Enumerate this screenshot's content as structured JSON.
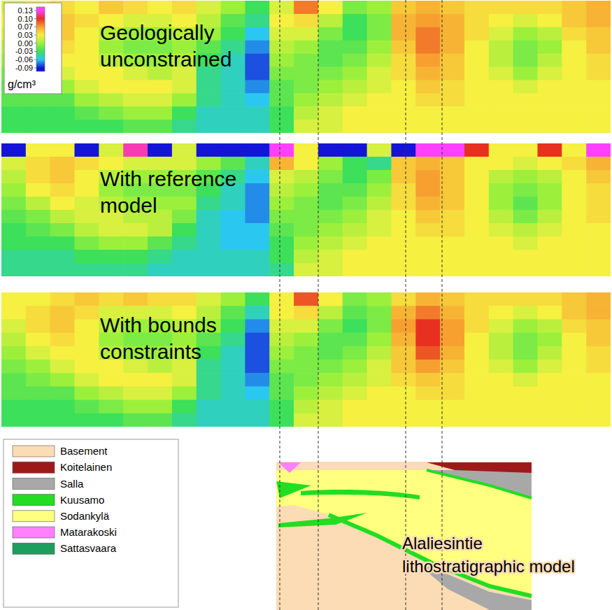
{
  "chart_data": [
    {
      "type": "heatmap",
      "title": "Geologically unconstrained",
      "tick_labels": false,
      "cells": [
        [
          0.02,
          0.03,
          0.04,
          0.03,
          0.05,
          0.04,
          0.03,
          0.04,
          0.02,
          0.0,
          -0.03,
          0.02,
          0.08,
          0.03,
          -0.01,
          0.0,
          0.05,
          0.06,
          0.05,
          0.04,
          0.04,
          0.04,
          0.04,
          0.05,
          0.06
        ],
        [
          0.03,
          0.04,
          0.05,
          0.04,
          0.03,
          0.02,
          0.02,
          0.03,
          0.01,
          -0.02,
          -0.04,
          0.03,
          0.04,
          0.01,
          -0.03,
          -0.01,
          0.06,
          0.07,
          0.06,
          0.04,
          0.03,
          0.02,
          0.03,
          0.05,
          0.06
        ],
        [
          0.02,
          0.04,
          0.05,
          0.03,
          0.01,
          0.0,
          0.0,
          0.01,
          0.0,
          -0.03,
          -0.06,
          0.02,
          0.02,
          -0.01,
          -0.03,
          -0.01,
          0.06,
          0.08,
          0.06,
          0.04,
          0.02,
          0.0,
          0.01,
          0.04,
          0.05
        ],
        [
          0.01,
          0.03,
          0.04,
          0.03,
          0.0,
          -0.01,
          -0.01,
          0.0,
          -0.02,
          -0.04,
          -0.07,
          0.01,
          0.0,
          -0.02,
          -0.02,
          0.0,
          0.05,
          0.08,
          0.06,
          0.03,
          0.01,
          -0.01,
          0.0,
          0.03,
          0.05
        ],
        [
          0.0,
          0.02,
          0.03,
          0.03,
          0.01,
          0.0,
          0.0,
          0.01,
          -0.03,
          -0.05,
          -0.08,
          0.0,
          -0.01,
          -0.02,
          -0.01,
          0.01,
          0.04,
          0.07,
          0.05,
          0.03,
          0.01,
          -0.01,
          0.01,
          0.03,
          0.04
        ],
        [
          -0.01,
          0.0,
          0.02,
          0.03,
          0.03,
          0.02,
          0.01,
          0.02,
          -0.04,
          -0.05,
          -0.08,
          -0.01,
          -0.01,
          -0.01,
          0.0,
          0.02,
          0.04,
          0.06,
          0.05,
          0.03,
          0.02,
          0.0,
          0.02,
          0.03,
          0.04
        ],
        [
          -0.02,
          -0.01,
          0.0,
          0.02,
          0.03,
          0.03,
          0.03,
          0.02,
          -0.04,
          -0.05,
          -0.07,
          -0.02,
          -0.01,
          0.0,
          0.01,
          0.02,
          0.03,
          0.05,
          0.04,
          0.03,
          0.03,
          0.02,
          0.03,
          0.03,
          0.03
        ],
        [
          -0.02,
          -0.02,
          -0.02,
          0.0,
          0.01,
          0.02,
          0.02,
          0.0,
          -0.04,
          -0.05,
          -0.06,
          -0.02,
          0.0,
          0.01,
          0.02,
          0.03,
          0.03,
          0.04,
          0.04,
          0.03,
          0.03,
          0.03,
          0.03,
          0.03,
          0.03
        ],
        [
          -0.03,
          -0.03,
          -0.03,
          -0.02,
          -0.01,
          0.0,
          0.0,
          -0.03,
          -0.05,
          -0.05,
          -0.05,
          -0.03,
          0.01,
          0.02,
          0.03,
          0.03,
          0.03,
          0.03,
          0.03,
          0.03,
          0.03,
          0.03,
          0.03,
          0.03,
          0.03
        ],
        [
          -0.03,
          -0.03,
          -0.03,
          -0.03,
          -0.03,
          -0.02,
          -0.02,
          -0.04,
          -0.05,
          -0.05,
          -0.05,
          -0.03,
          0.02,
          0.02,
          0.03,
          0.03,
          0.03,
          0.03,
          0.03,
          0.03,
          0.03,
          0.03,
          0.03,
          0.03,
          0.03
        ]
      ]
    },
    {
      "type": "heatmap",
      "title": "With reference model",
      "tick_labels": false,
      "cells": [
        [
          -0.09,
          0.03,
          0.03,
          -0.09,
          0.02,
          0.12,
          -0.09,
          0.02,
          -0.09,
          -0.09,
          -0.09,
          0.13,
          0.03,
          -0.09,
          -0.09,
          0.02,
          -0.09,
          0.13,
          0.13,
          0.1,
          0.03,
          0.03,
          0.1,
          0.03,
          0.13
        ],
        [
          0.02,
          0.04,
          0.05,
          0.04,
          0.03,
          0.02,
          0.02,
          0.02,
          0.0,
          -0.02,
          -0.05,
          0.06,
          0.03,
          0.0,
          -0.03,
          -0.04,
          0.05,
          0.06,
          0.05,
          0.03,
          0.03,
          0.02,
          0.03,
          0.04,
          0.06
        ],
        [
          0.01,
          0.04,
          0.05,
          0.03,
          0.01,
          0.0,
          0.0,
          0.0,
          -0.02,
          -0.04,
          -0.06,
          0.02,
          0.01,
          -0.01,
          -0.03,
          -0.01,
          0.05,
          0.07,
          0.05,
          0.03,
          0.01,
          0.0,
          0.01,
          0.03,
          0.05
        ],
        [
          0.0,
          0.03,
          0.04,
          0.03,
          0.0,
          -0.01,
          -0.01,
          -0.01,
          -0.03,
          -0.05,
          -0.07,
          0.01,
          0.0,
          -0.02,
          -0.02,
          0.0,
          0.04,
          0.07,
          0.05,
          0.03,
          0.0,
          -0.01,
          0.0,
          0.03,
          0.04
        ],
        [
          -0.01,
          0.01,
          0.03,
          0.02,
          0.01,
          0.0,
          0.0,
          0.0,
          -0.04,
          -0.05,
          -0.07,
          0.0,
          -0.01,
          -0.02,
          -0.01,
          0.01,
          0.04,
          0.06,
          0.05,
          0.03,
          0.0,
          -0.02,
          0.0,
          0.03,
          0.04
        ],
        [
          -0.02,
          -0.01,
          0.01,
          0.02,
          0.02,
          0.01,
          0.01,
          -0.01,
          -0.05,
          -0.06,
          -0.07,
          -0.01,
          -0.01,
          -0.01,
          0.0,
          0.02,
          0.03,
          0.05,
          0.04,
          0.03,
          0.01,
          -0.01,
          0.01,
          0.03,
          0.04
        ],
        [
          -0.03,
          -0.02,
          -0.01,
          0.01,
          0.02,
          0.02,
          0.01,
          -0.03,
          -0.05,
          -0.06,
          -0.06,
          -0.02,
          -0.01,
          0.0,
          0.01,
          0.02,
          0.03,
          0.04,
          0.04,
          0.03,
          0.02,
          0.01,
          0.02,
          0.03,
          0.03
        ],
        [
          -0.03,
          -0.03,
          -0.03,
          -0.01,
          0.0,
          0.0,
          -0.02,
          -0.04,
          -0.05,
          -0.06,
          -0.06,
          -0.03,
          0.0,
          0.01,
          0.02,
          0.03,
          0.03,
          0.03,
          0.03,
          0.03,
          0.03,
          0.02,
          0.03,
          0.03,
          0.03
        ],
        [
          -0.04,
          -0.04,
          -0.04,
          -0.03,
          -0.03,
          -0.03,
          -0.04,
          -0.05,
          -0.05,
          -0.05,
          -0.05,
          -0.03,
          0.01,
          0.02,
          0.03,
          0.03,
          0.03,
          0.03,
          0.03,
          0.03,
          0.03,
          0.03,
          0.03,
          0.03,
          0.03
        ],
        [
          -0.04,
          -0.04,
          -0.04,
          -0.04,
          -0.04,
          -0.04,
          -0.05,
          -0.05,
          -0.05,
          -0.05,
          -0.05,
          -0.04,
          0.02,
          0.02,
          0.03,
          0.03,
          0.03,
          0.03,
          0.03,
          0.03,
          0.03,
          0.03,
          0.03,
          0.03,
          0.03
        ]
      ]
    },
    {
      "type": "heatmap",
      "title": "With bounds constraints",
      "tick_labels": false,
      "cells": [
        [
          0.03,
          0.03,
          0.04,
          0.05,
          0.04,
          0.05,
          0.04,
          0.04,
          0.02,
          0.0,
          -0.03,
          0.03,
          0.09,
          0.03,
          -0.01,
          0.0,
          0.04,
          0.06,
          0.05,
          0.04,
          0.04,
          0.04,
          0.04,
          0.05,
          0.06
        ],
        [
          0.03,
          0.04,
          0.05,
          0.04,
          0.02,
          0.02,
          0.02,
          0.03,
          0.01,
          -0.02,
          -0.05,
          0.03,
          0.04,
          0.01,
          -0.02,
          -0.01,
          0.06,
          0.08,
          0.06,
          0.04,
          0.03,
          0.02,
          0.03,
          0.05,
          0.06
        ],
        [
          0.02,
          0.04,
          0.05,
          0.03,
          0.01,
          0.0,
          0.0,
          0.01,
          0.0,
          -0.03,
          -0.07,
          0.02,
          0.02,
          -0.01,
          -0.03,
          -0.01,
          0.07,
          0.1,
          0.07,
          0.04,
          0.02,
          0.0,
          0.01,
          0.04,
          0.05
        ],
        [
          0.01,
          0.03,
          0.04,
          0.03,
          0.0,
          -0.01,
          -0.01,
          0.0,
          -0.02,
          -0.04,
          -0.08,
          0.01,
          0.0,
          -0.02,
          -0.02,
          0.0,
          0.06,
          0.1,
          0.07,
          0.03,
          0.01,
          -0.01,
          0.0,
          0.03,
          0.05
        ],
        [
          0.0,
          0.02,
          0.03,
          0.03,
          0.01,
          0.0,
          0.0,
          0.01,
          -0.03,
          -0.05,
          -0.08,
          0.0,
          -0.01,
          -0.02,
          -0.01,
          0.01,
          0.05,
          0.09,
          0.06,
          0.03,
          0.01,
          -0.01,
          0.01,
          0.03,
          0.04
        ],
        [
          -0.01,
          0.0,
          0.02,
          0.03,
          0.03,
          0.02,
          0.01,
          0.02,
          -0.04,
          -0.05,
          -0.08,
          -0.01,
          -0.01,
          -0.01,
          0.0,
          0.02,
          0.05,
          0.07,
          0.05,
          0.03,
          0.02,
          0.0,
          0.02,
          0.03,
          0.04
        ],
        [
          -0.02,
          -0.01,
          0.0,
          0.02,
          0.03,
          0.03,
          0.03,
          0.02,
          -0.04,
          -0.05,
          -0.07,
          -0.02,
          -0.01,
          0.0,
          0.01,
          0.02,
          0.04,
          0.05,
          0.04,
          0.03,
          0.03,
          0.02,
          0.03,
          0.03,
          0.03
        ],
        [
          -0.02,
          -0.02,
          -0.02,
          0.0,
          0.01,
          0.02,
          0.02,
          0.0,
          -0.04,
          -0.05,
          -0.06,
          -0.02,
          0.0,
          0.01,
          0.02,
          0.03,
          0.03,
          0.04,
          0.04,
          0.03,
          0.03,
          0.03,
          0.03,
          0.03,
          0.03
        ],
        [
          -0.03,
          -0.03,
          -0.03,
          -0.02,
          -0.01,
          0.0,
          0.0,
          -0.03,
          -0.05,
          -0.05,
          -0.05,
          -0.03,
          0.01,
          0.02,
          0.03,
          0.03,
          0.03,
          0.03,
          0.03,
          0.03,
          0.03,
          0.03,
          0.03,
          0.03,
          0.03
        ],
        [
          -0.03,
          -0.03,
          -0.03,
          -0.03,
          -0.03,
          -0.02,
          -0.02,
          -0.04,
          -0.05,
          -0.05,
          -0.05,
          -0.03,
          0.02,
          0.02,
          0.03,
          0.03,
          0.03,
          0.03,
          0.03,
          0.03,
          0.03,
          0.03,
          0.03,
          0.03,
          0.03
        ]
      ]
    }
  ],
  "colorbar": {
    "range": [
      -0.09,
      0.13
    ],
    "ticks": [
      0.13,
      {
        "value": 0.1,
        "label": "0.10"
      },
      0.07,
      0.03,
      {
        "value": 0,
        "label": "0.00"
      },
      -0.03,
      -0.06,
      -0.09
    ],
    "colors": [
      "#ff40ff",
      "#e83020",
      "#f7a030",
      "#f6f040",
      "#9cf03c",
      "#3ce05a",
      "#2ac8f0",
      "#1414d8"
    ],
    "label": "g/cm³"
  },
  "units_legend": {
    "items": [
      {
        "name": "Basement",
        "color": "#fcdcb4"
      },
      {
        "name": "Koitelainen",
        "color": "#9e1a1a"
      },
      {
        "name": "Salla",
        "color": "#a8a8a8"
      },
      {
        "name": "Kuusamo",
        "color": "#22dd22"
      },
      {
        "name": "Sodankylä",
        "color": "#ffff80"
      },
      {
        "name": "Matarakoski",
        "color": "#ff80ff"
      },
      {
        "name": "Sattasvaara",
        "color": "#1e9e5e"
      }
    ]
  },
  "model": {
    "title": "Alaliesintie lithostratigraphic model"
  }
}
